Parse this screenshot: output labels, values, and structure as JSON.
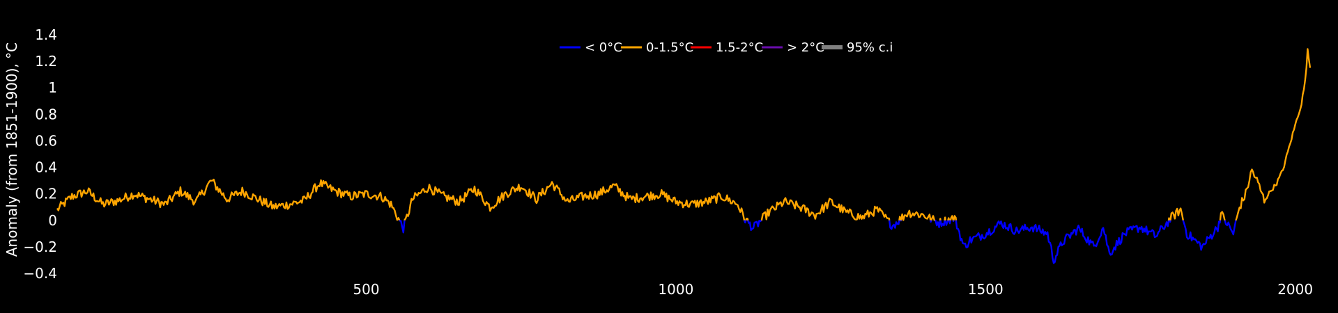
{
  "chart_data": {
    "type": "line",
    "title": "",
    "xlabel": "",
    "ylabel": "Anomaly (from 1851-1900), °C",
    "xlim": [
      1,
      2024
    ],
    "ylim": [
      -0.4,
      1.4
    ],
    "x_ticks": [
      "500",
      "1000",
      "1500",
      "2000"
    ],
    "y_ticks": [
      "1.4",
      "1.2",
      "1",
      "0.8",
      "0.6",
      "0.4",
      "0.2",
      "0",
      "−0.2",
      "−0.4"
    ],
    "grid": false,
    "legend_position": "top-center",
    "legend": [
      {
        "label": "< 0°C",
        "color": "#0000ff"
      },
      {
        "label": "0-1.5°C",
        "color": "#ffa500"
      },
      {
        "label": "1.5-2°C",
        "color": "#ff0000"
      },
      {
        "label": "> 2°C",
        "color": "#6a0dad"
      },
      {
        "label": "95% c.i",
        "color": "#808080"
      }
    ],
    "series": [
      {
        "name": "",
        "x": [
          1,
          25,
          50,
          75,
          100,
          125,
          150,
          175,
          200,
          225,
          250,
          275,
          300,
          325,
          350,
          375,
          400,
          425,
          450,
          475,
          500,
          525,
          540,
          560,
          575,
          600,
          625,
          650,
          675,
          700,
          725,
          750,
          775,
          800,
          825,
          850,
          875,
          900,
          925,
          950,
          975,
          1000,
          1025,
          1050,
          1075,
          1100,
          1110,
          1125,
          1150,
          1175,
          1200,
          1225,
          1250,
          1275,
          1300,
          1325,
          1350,
          1375,
          1400,
          1425,
          1450,
          1465,
          1475,
          1500,
          1525,
          1550,
          1575,
          1600,
          1610,
          1625,
          1650,
          1675,
          1690,
          1700,
          1725,
          1750,
          1775,
          1800,
          1815,
          1825,
          1850,
          1875,
          1880,
          1900,
          1910,
          1920,
          1930,
          1940,
          1950,
          1960,
          1970,
          1980,
          1990,
          2000,
          2010,
          2016,
          2020,
          2024
        ],
        "y": [
          0.08,
          0.18,
          0.22,
          0.12,
          0.15,
          0.2,
          0.16,
          0.12,
          0.22,
          0.14,
          0.3,
          0.16,
          0.22,
          0.16,
          0.1,
          0.12,
          0.15,
          0.28,
          0.22,
          0.18,
          0.2,
          0.18,
          0.12,
          -0.06,
          0.16,
          0.25,
          0.18,
          0.14,
          0.24,
          0.1,
          0.2,
          0.26,
          0.16,
          0.28,
          0.14,
          0.18,
          0.2,
          0.26,
          0.16,
          0.18,
          0.2,
          0.14,
          0.12,
          0.14,
          0.18,
          0.12,
          0.02,
          -0.06,
          0.06,
          0.14,
          0.1,
          0.04,
          0.14,
          0.06,
          0.02,
          0.08,
          -0.04,
          0.06,
          0.04,
          -0.02,
          0.02,
          -0.2,
          -0.15,
          -0.1,
          -0.02,
          -0.08,
          -0.05,
          -0.1,
          -0.3,
          -0.16,
          -0.06,
          -0.2,
          -0.05,
          -0.25,
          -0.1,
          -0.05,
          -0.12,
          0.02,
          0.08,
          -0.1,
          -0.2,
          -0.05,
          0.05,
          -0.1,
          0.1,
          0.2,
          0.38,
          0.28,
          0.15,
          0.22,
          0.28,
          0.38,
          0.55,
          0.72,
          0.88,
          1.05,
          1.28,
          1.15
        ]
      }
    ]
  }
}
